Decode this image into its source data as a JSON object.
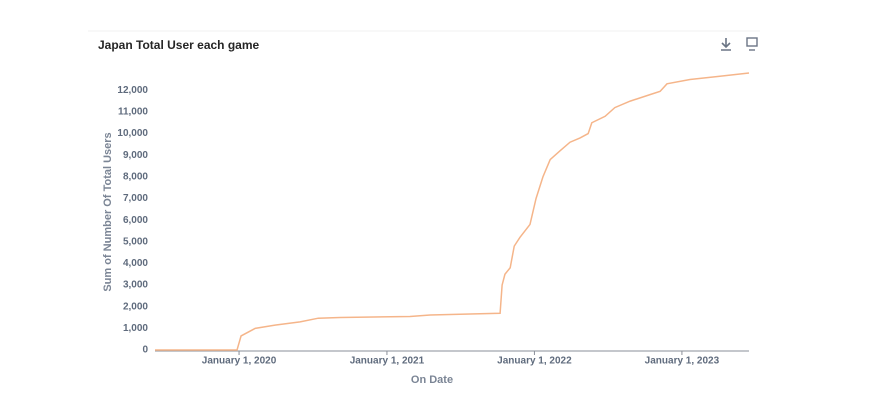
{
  "chart_data": {
    "type": "line",
    "title": "Japan Total User each game",
    "x_label": "On Date",
    "y_label": "Sum of Number Of Total Users",
    "x": [
      "2019-06-07",
      "2019-12-27",
      "2020-01-06",
      "2020-02-10",
      "2020-03-30",
      "2020-05-31",
      "2020-07-15",
      "2020-09-07",
      "2021-02-27",
      "2021-04-18",
      "2021-07-01",
      "2021-10-08",
      "2021-10-13",
      "2021-10-20",
      "2021-11-02",
      "2021-11-12",
      "2021-11-26",
      "2021-12-21",
      "2022-01-05",
      "2022-01-22",
      "2022-02-09",
      "2022-03-05",
      "2022-03-30",
      "2022-04-24",
      "2022-05-14",
      "2022-05-23",
      "2022-06-25",
      "2022-07-19",
      "2022-08-26",
      "2022-10-14",
      "2022-11-08",
      "2022-11-25",
      "2023-01-21",
      "2023-04-05",
      "2023-06-16"
    ],
    "series": [
      {
        "name": "Sum of Number Of Total Users",
        "color": "#f5b58a",
        "values": [
          0,
          0,
          650,
          1000,
          1150,
          1300,
          1470,
          1500,
          1550,
          1620,
          1650,
          1700,
          3000,
          3500,
          3800,
          4800,
          5200,
          5800,
          7000,
          8000,
          8800,
          9200,
          9600,
          9800,
          10000,
          10500,
          10800,
          11200,
          11500,
          11800,
          11950,
          12300,
          12500,
          12650,
          12800
        ]
      }
    ],
    "xlim": [
      "2019-06-07",
      "2023-06-16"
    ],
    "xticks": [
      {
        "value": "2020-01-01",
        "label": "January 1, 2020"
      },
      {
        "value": "2021-01-01",
        "label": "January 1, 2021"
      },
      {
        "value": "2022-01-01",
        "label": "January 1, 2022"
      },
      {
        "value": "2023-01-01",
        "label": "January 1, 2023"
      }
    ],
    "ylim": [
      0,
      13400
    ],
    "yticks": [
      0,
      {
        "value": 1000,
        "label": "1,000"
      },
      {
        "value": 2000,
        "label": "2,000"
      },
      {
        "value": 3000,
        "label": "3,000"
      },
      {
        "value": 4000,
        "label": "4,000"
      },
      {
        "value": 5000,
        "label": "5,000"
      },
      {
        "value": 6000,
        "label": "6,000"
      },
      {
        "value": 7000,
        "label": "7,000"
      },
      {
        "value": 8000,
        "label": "8,000"
      },
      {
        "value": 9000,
        "label": "9,000"
      },
      {
        "value": 10000,
        "label": "10,000"
      },
      {
        "value": 11000,
        "label": "11,000"
      },
      {
        "value": 12000,
        "label": "12,000"
      }
    ],
    "grid": false
  }
}
